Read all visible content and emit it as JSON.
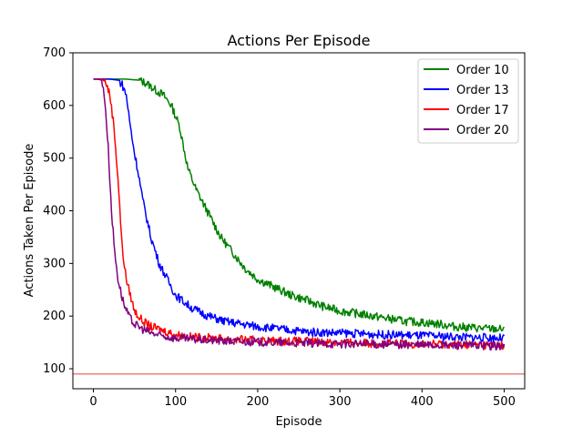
{
  "chart_data": {
    "type": "line",
    "title": "Actions Per Episode",
    "xlabel": "Episode",
    "ylabel": "Actions Taken Per Episode",
    "xlim": [
      -25,
      525
    ],
    "ylim": [
      62,
      700
    ],
    "xticks": [
      0,
      100,
      200,
      300,
      400,
      500
    ],
    "yticks": [
      100,
      200,
      300,
      400,
      500,
      600,
      700
    ],
    "legend_position": "top-right",
    "reference_line": {
      "y": 90,
      "color": "#f08080"
    },
    "series": [
      {
        "name": "Order 10",
        "color": "#008000",
        "x": [
          0,
          20,
          40,
          55,
          65,
          75,
          85,
          95,
          105,
          115,
          125,
          140,
          155,
          170,
          185,
          200,
          220,
          240,
          260,
          280,
          300,
          320,
          340,
          360,
          380,
          400,
          420,
          440,
          460,
          480,
          500
        ],
        "values": [
          650,
          650,
          650,
          648,
          642,
          630,
          620,
          600,
          560,
          480,
          440,
          395,
          350,
          320,
          290,
          270,
          255,
          240,
          230,
          218,
          210,
          205,
          200,
          195,
          190,
          188,
          185,
          180,
          178,
          176,
          175
        ]
      },
      {
        "name": "Order 13",
        "color": "#0000ff",
        "x": [
          0,
          20,
          30,
          35,
          40,
          45,
          50,
          55,
          60,
          70,
          80,
          90,
          100,
          120,
          140,
          160,
          180,
          200,
          230,
          260,
          300,
          350,
          400,
          450,
          500
        ],
        "values": [
          650,
          650,
          648,
          640,
          620,
          560,
          510,
          470,
          420,
          350,
          300,
          270,
          240,
          215,
          200,
          190,
          185,
          180,
          175,
          170,
          168,
          165,
          163,
          160,
          158
        ]
      },
      {
        "name": "Order 17",
        "color": "#ff0000",
        "x": [
          0,
          10,
          15,
          20,
          25,
          30,
          35,
          40,
          45,
          50,
          60,
          70,
          80,
          100,
          120,
          150,
          180,
          220,
          260,
          300,
          350,
          400,
          450,
          500
        ],
        "values": [
          650,
          650,
          645,
          620,
          560,
          460,
          330,
          270,
          240,
          210,
          190,
          180,
          175,
          165,
          160,
          158,
          155,
          153,
          152,
          150,
          148,
          147,
          146,
          145
        ]
      },
      {
        "name": "Order 20",
        "color": "#800080",
        "x": [
          0,
          5,
          10,
          14,
          18,
          22,
          26,
          30,
          35,
          40,
          45,
          50,
          60,
          70,
          80,
          100,
          130,
          170,
          220,
          270,
          320,
          370,
          420,
          470,
          500
        ],
        "values": [
          650,
          650,
          648,
          610,
          520,
          400,
          320,
          270,
          235,
          210,
          195,
          185,
          175,
          168,
          163,
          158,
          155,
          152,
          150,
          148,
          147,
          146,
          145,
          144,
          143
        ]
      }
    ]
  }
}
